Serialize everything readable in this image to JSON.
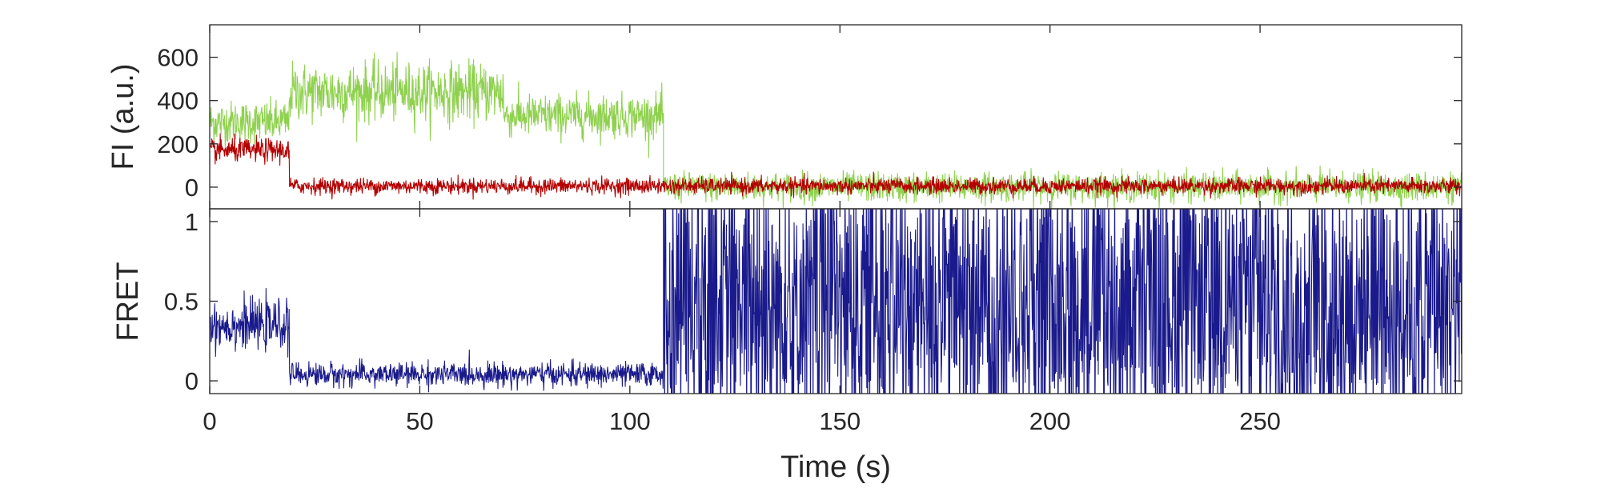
{
  "chart_data": [
    {
      "type": "line",
      "panel": "fluorescence",
      "title": "",
      "xlabel": "",
      "ylabel": "FI (a.u.)",
      "xlim": [
        0,
        298
      ],
      "ylim": [
        -100,
        750
      ],
      "xticks": [
        0,
        50,
        100,
        150,
        200,
        250
      ],
      "yticks": [
        0,
        200,
        400,
        600
      ],
      "ytick_labels": [
        "0",
        "200",
        "400",
        "600"
      ],
      "grid": false,
      "series": [
        {
          "color": "#8fd14f",
          "description_levels": [
            {
              "x_start": 0,
              "x_end": 19,
              "mean": 300,
              "noise": 80
            },
            {
              "x_start": 19,
              "x_end": 70,
              "mean": 440,
              "noise": 110
            },
            {
              "x_start": 70,
              "x_end": 108,
              "mean": 330,
              "noise": 80
            },
            {
              "x_start": 108,
              "x_end": 298,
              "mean": 0,
              "noise": 55
            }
          ]
        },
        {
          "color": "#b40000",
          "description_levels": [
            {
              "x_start": 0,
              "x_end": 19,
              "mean": 170,
              "noise": 45
            },
            {
              "x_start": 19,
              "x_end": 298,
              "mean": 5,
              "noise": 30
            }
          ]
        }
      ]
    },
    {
      "type": "line",
      "panel": "fret",
      "title": "",
      "xlabel": "Time (s)",
      "ylabel": "FRET",
      "xlim": [
        0,
        298
      ],
      "ylim": [
        -0.08,
        1.08
      ],
      "xticks": [
        0,
        50,
        100,
        150,
        200,
        250
      ],
      "xtick_labels": [
        "0",
        "50",
        "100",
        "150",
        "200",
        "250"
      ],
      "yticks": [
        0,
        0.5,
        1
      ],
      "ytick_labels": [
        "0",
        "0.5",
        "1"
      ],
      "grid": false,
      "series": [
        {
          "color": "#1a1a8c",
          "description_levels": [
            {
              "x_start": 0,
              "x_end": 19,
              "mean": 0.35,
              "noise": 0.12
            },
            {
              "x_start": 19,
              "x_end": 108,
              "mean": 0.04,
              "noise": 0.06
            },
            {
              "x_start": 108,
              "x_end": 298,
              "mean": 0.5,
              "noise": 0.6
            }
          ]
        }
      ]
    }
  ]
}
